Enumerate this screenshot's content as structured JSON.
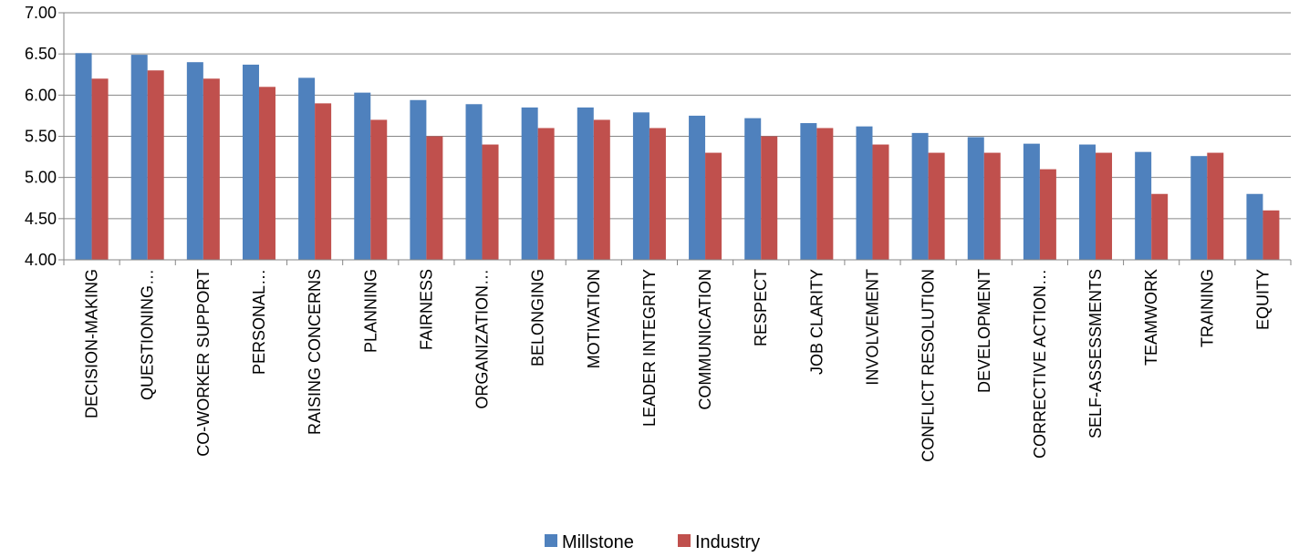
{
  "chart_data": {
    "type": "bar",
    "title": "",
    "xlabel": "",
    "ylabel": "",
    "ylim": [
      4.0,
      7.0
    ],
    "ytick_labels": [
      "4.00",
      "4.50",
      "5.00",
      "5.50",
      "6.00",
      "6.50",
      "7.00"
    ],
    "grid": true,
    "legend_position": "bottom",
    "categories": [
      "DECISION-MAKING",
      "QUESTIONING…",
      "CO-WORKER SUPPORT",
      "PERSONAL…",
      "RAISING CONCERNS",
      "PLANNING",
      "FAIRNESS",
      "ORGANIZATION…",
      "BELONGING",
      "MOTIVATION",
      "LEADER INTEGRITY",
      "COMMUNICATION",
      "RESPECT",
      "JOB CLARITY",
      "INVOLVEMENT",
      "CONFLICT RESOLUTION",
      "DEVELOPMENT",
      "CORRECTIVE ACTION…",
      "SELF-ASSESSMENTS",
      "TEAMWORK",
      "TRAINING",
      "EQUITY"
    ],
    "series": [
      {
        "name": "Millstone",
        "color": "#4F81BD",
        "values": [
          6.51,
          6.49,
          6.4,
          6.37,
          6.21,
          6.03,
          5.94,
          5.89,
          5.85,
          5.85,
          5.79,
          5.75,
          5.72,
          5.66,
          5.62,
          5.54,
          5.49,
          5.41,
          5.4,
          5.31,
          5.26,
          4.8
        ]
      },
      {
        "name": "Industry",
        "color": "#C0504D",
        "values": [
          6.2,
          6.3,
          6.2,
          6.1,
          5.9,
          5.7,
          5.5,
          5.4,
          5.6,
          5.7,
          5.6,
          5.3,
          5.5,
          5.6,
          5.4,
          5.3,
          5.3,
          5.1,
          5.3,
          4.8,
          5.3,
          4.6
        ]
      }
    ]
  }
}
